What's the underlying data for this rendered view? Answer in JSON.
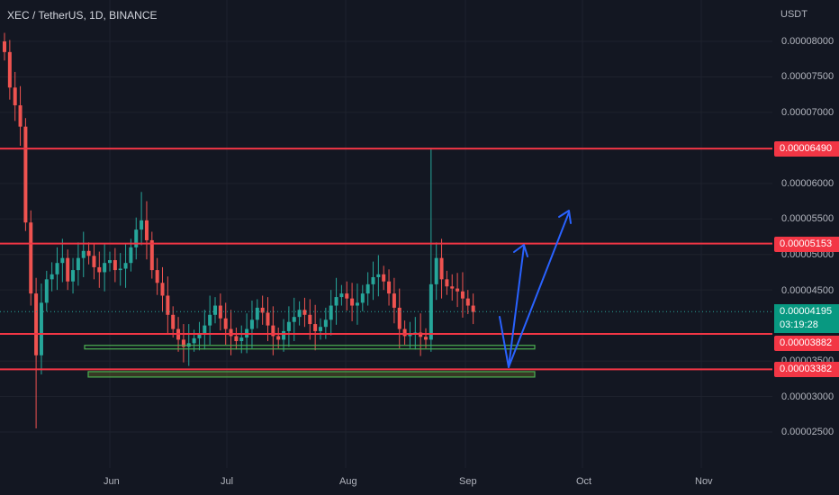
{
  "header": {
    "title": "XEC / TetherUS, 1D, BINANCE",
    "unit": "USDT"
  },
  "y_axis": {
    "labels": [
      "0.00008000",
      "0.00007500",
      "0.00007000",
      "0.00006000",
      "0.00005500",
      "0.00005000",
      "0.00004500",
      "0.00003500",
      "0.00003000",
      "0.00002500"
    ]
  },
  "x_axis": {
    "labels": [
      "Jun",
      "Jul",
      "Aug",
      "Sep",
      "Oct",
      "Nov"
    ]
  },
  "price_tags": {
    "level_1": "0.00006490",
    "level_2": "0.00005153",
    "current_price": "0.00004195",
    "countdown": "03:19:28",
    "level_3": "0.00003882",
    "level_4": "0.00003382"
  },
  "colors": {
    "background": "#131722",
    "up": "#26a69a",
    "down": "#ef5350",
    "level_line": "#f23645",
    "support_box": "#4caf50",
    "arrow": "#2962ff"
  },
  "chart_data": {
    "type": "candlestick",
    "symbol": "XEC / TetherUS",
    "interval": "1D",
    "exchange": "BINANCE",
    "ylim": [
      2.2e-05,
      8.2e-05
    ],
    "y_ticks": [
      2.5e-05,
      3e-05,
      3.5e-05,
      4.5e-05,
      5e-05,
      5.5e-05,
      6e-05,
      7e-05,
      7.5e-05,
      8e-05
    ],
    "x_ticks": [
      "Jun",
      "Jul",
      "Aug",
      "Sep",
      "Oct",
      "Nov"
    ],
    "horizontal_levels": [
      6.49e-05,
      5.153e-05,
      3.882e-05,
      3.382e-05
    ],
    "last_price": 4.195e-05,
    "close_series": [
      7.85e-05,
      7.35e-05,
      7.1e-05,
      6.8e-05,
      5.45e-05,
      4.45e-05,
      3.58e-05,
      4.32e-05,
      4.65e-05,
      4.72e-05,
      4.88e-05,
      4.95e-05,
      4.62e-05,
      4.78e-05,
      4.95e-05,
      5.05e-05,
      4.98e-05,
      4.82e-05,
      4.75e-05,
      4.88e-05,
      4.92e-05,
      4.78e-05,
      4.8e-05,
      4.88e-05,
      5.1e-05,
      5.35e-05,
      5.48e-05,
      5.2e-05,
      4.78e-05,
      4.6e-05,
      4.42e-05,
      4.15e-05,
      3.95e-05,
      3.8e-05,
      3.7e-05,
      3.75e-05,
      3.82e-05,
      3.88e-05,
      4e-05,
      4.15e-05,
      4.28e-05,
      4.1e-05,
      3.95e-05,
      3.85e-05,
      3.78e-05,
      3.83e-05,
      3.95e-05,
      4.08e-05,
      4.25e-05,
      4.18e-05,
      4e-05,
      3.85e-05,
      3.8e-05,
      3.92e-05,
      4.05e-05,
      4.12e-05,
      4.22e-05,
      4.15e-05,
      4.02e-05,
      3.92e-05,
      3.98e-05,
      4.08e-05,
      4.28e-05,
      4.4e-05,
      4.45e-05,
      4.38e-05,
      4.28e-05,
      4.32e-05,
      4.45e-05,
      4.58e-05,
      4.68e-05,
      4.72e-05,
      4.62e-05,
      4.45e-05,
      4.25e-05,
      3.95e-05,
      3.85e-05,
      3.88e-05,
      3.9e-05,
      3.84e-05,
      3.8e-05,
      4.58e-05,
      4.95e-05,
      4.65e-05,
      4.55e-05,
      4.52e-05,
      4.48e-05,
      4.38e-05,
      4.28e-05,
      4.19e-05
    ]
  }
}
